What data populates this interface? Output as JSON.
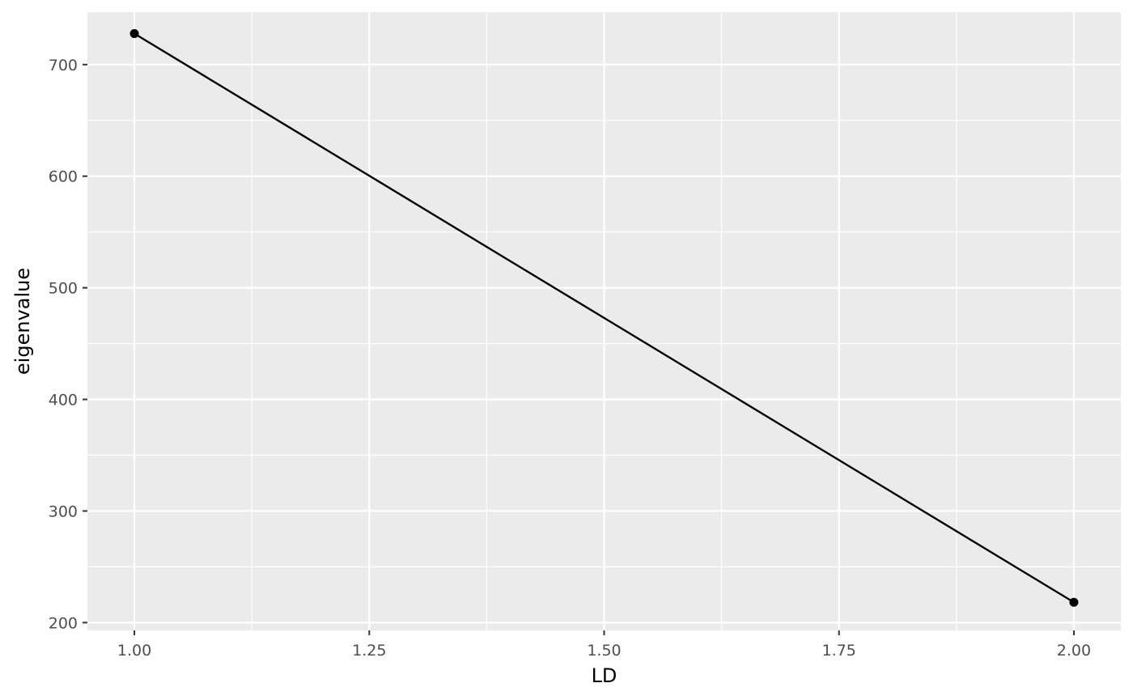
{
  "chart_data": {
    "type": "line",
    "xlabel": "LD",
    "ylabel": "eigenvalue",
    "x": [
      1.0,
      2.0
    ],
    "series": [
      {
        "values": [
          727.8,
          218.2
        ]
      }
    ],
    "xlim": [
      0.95,
      2.05
    ],
    "ylim": [
      193,
      747
    ],
    "x_ticks": [
      "1.00",
      "1.25",
      "1.50",
      "1.75",
      "2.00"
    ],
    "y_ticks": [
      "200",
      "300",
      "400",
      "500",
      "600",
      "700"
    ],
    "grid": true,
    "legend": "none",
    "colors": {
      "panel_background": "#EBEBEB",
      "grid": "#FFFFFF",
      "line": "#000000",
      "points": "#000000",
      "tick_text": "#4D4D4D",
      "axis_title": "#000000"
    }
  }
}
